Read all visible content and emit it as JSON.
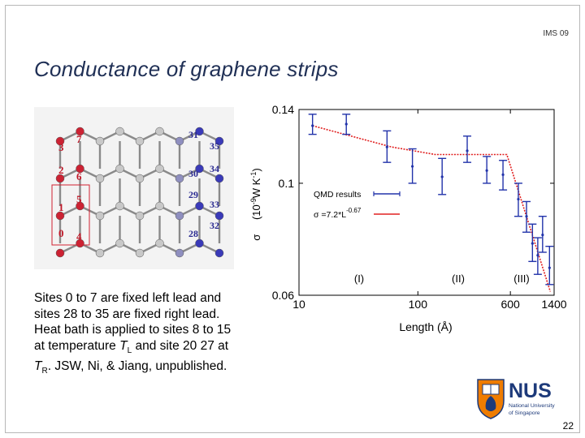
{
  "header": {
    "label": "IMS 09"
  },
  "title": "Conductance of graphene strips",
  "lattice": {
    "left_site_labels": [
      "7",
      "3",
      "2",
      "6",
      "1",
      "5",
      "0",
      "4"
    ],
    "right_site_labels": [
      "31",
      "35",
      "30",
      "34",
      "29",
      "33",
      "28",
      "32"
    ],
    "highlight_color": "#d02030",
    "left_atom_color": "#cc2233",
    "right_atom_color": "#3a3ab8"
  },
  "caption": {
    "line1": "Sites 0 to 7 are fixed left lead and sites 28 to 35 are fixed right lead.  Heat bath is applied to sites 8 to 15 at temperature ",
    "tl_symbol": "T",
    "tl_sub": "L",
    "mid": " and site 20 27 at ",
    "tr_symbol": "T",
    "tr_sub": "R",
    "end": ". JSW, Ni, & Jiang, unpublished."
  },
  "chart_data": {
    "type": "scatter",
    "x_scale": "log",
    "y_scale": "log",
    "xlim": [
      10,
      1400
    ],
    "ylim": [
      0.06,
      0.14
    ],
    "xticks": [
      "10",
      "100",
      "600",
      "1400"
    ],
    "yticks": [
      "0.14",
      "0.1",
      "0.06"
    ],
    "xlabel": "Length   (Å)",
    "ylabel_symbol": "σ",
    "ylabel_units": "(10",
    "ylabel_exp": "-9",
    "ylabel_rest": "W K",
    "ylabel_exp2": "-1",
    "ylabel_close": ")",
    "regions": [
      "(I)",
      "(II)",
      "(III)"
    ],
    "legend": {
      "position": "middle-left",
      "series1": "QMD results",
      "series2_prefix": "σ =7.2*L",
      "series2_exp": "-0.67"
    },
    "series_color": "#2233aa",
    "fit_color": "#e02020",
    "series": [
      {
        "name": "QMD results",
        "points": [
          {
            "x": 13,
            "y": 0.13,
            "lo": 0.125,
            "hi": 0.137
          },
          {
            "x": 25,
            "y": 0.131,
            "lo": 0.125,
            "hi": 0.137
          },
          {
            "x": 55,
            "y": 0.118,
            "lo": 0.11,
            "hi": 0.127
          },
          {
            "x": 90,
            "y": 0.108,
            "lo": 0.1,
            "hi": 0.117
          },
          {
            "x": 160,
            "y": 0.103,
            "lo": 0.095,
            "hi": 0.112
          },
          {
            "x": 260,
            "y": 0.116,
            "lo": 0.11,
            "hi": 0.124
          },
          {
            "x": 380,
            "y": 0.106,
            "lo": 0.1,
            "hi": 0.113
          },
          {
            "x": 520,
            "y": 0.104,
            "lo": 0.097,
            "hi": 0.111
          },
          {
            "x": 700,
            "y": 0.093,
            "lo": 0.086,
            "hi": 0.1
          },
          {
            "x": 820,
            "y": 0.086,
            "lo": 0.08,
            "hi": 0.092
          },
          {
            "x": 920,
            "y": 0.076,
            "lo": 0.07,
            "hi": 0.083
          },
          {
            "x": 1020,
            "y": 0.072,
            "lo": 0.066,
            "hi": 0.078
          },
          {
            "x": 1120,
            "y": 0.079,
            "lo": 0.073,
            "hi": 0.086
          },
          {
            "x": 1280,
            "y": 0.068,
            "lo": 0.063,
            "hi": 0.075
          }
        ]
      },
      {
        "name": "σ =7.2*L-0.67",
        "points": [
          {
            "x": 13,
            "y": 0.13
          },
          {
            "x": 60,
            "y": 0.118
          },
          {
            "x": 140,
            "y": 0.114
          },
          {
            "x": 560,
            "y": 0.114
          },
          {
            "x": 1300,
            "y": 0.061
          }
        ]
      }
    ]
  },
  "logo": {
    "wordmark": "NUS",
    "line1": "National University",
    "line2": "of Singapore",
    "blue": "#1d3a7a",
    "orange": "#ef7c00"
  },
  "slide_number": "22"
}
